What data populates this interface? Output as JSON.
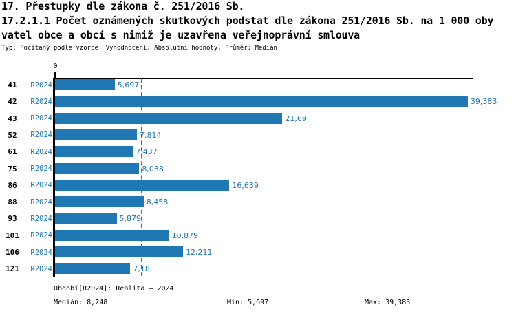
{
  "header": {
    "title_line1": "17. Přestupky dle zákona č. 251/2016 Sb.",
    "title_line2": "17.2.1.1 Počet oznámených skutkových podstat dle zákona 251/2016 Sb. na 1 000 oby",
    "title_line3": "vatel obce a obcí s nimiž je uzavřena veřejnoprávní smlouva",
    "meta_line": "Typ: Počítaný podle vzorce, Vyhodnocení: Absolutní hodnoty, Průměr: Medián"
  },
  "chart_data": {
    "type": "bar",
    "orientation": "horizontal",
    "categories": [
      "41",
      "42",
      "43",
      "52",
      "61",
      "75",
      "86",
      "88",
      "93",
      "101",
      "106",
      "121"
    ],
    "series_label": "R2024",
    "values": [
      5.697,
      39.383,
      21.69,
      7.814,
      7.437,
      8.038,
      16.639,
      8.458,
      5.879,
      10.879,
      12.211,
      7.18
    ],
    "value_labels": [
      "5,697",
      "39,383",
      "21,69",
      "7,814",
      "7,437",
      "8,038",
      "16,639",
      "8,458",
      "5,879",
      "10,879",
      "12,211",
      "7,18"
    ],
    "xlim": [
      0,
      39.85
    ],
    "x_tick_labels": [
      "0"
    ],
    "grid": false,
    "legend_position": "none",
    "median_value": 8.248,
    "bar_color": "#1f77b4",
    "median_line_color": "#1f77b4",
    "label_color": "#1f77b4"
  },
  "footer": {
    "period_line": "Období[R2024]: Realita – 2024",
    "median_label": "Medián: 8,248",
    "min_label": "Min: 5,697",
    "max_label": "Max: 39,383"
  },
  "colors": {
    "accent_blue": "#1f77b4",
    "axis_black": "#000000",
    "background": "#ffffff"
  }
}
